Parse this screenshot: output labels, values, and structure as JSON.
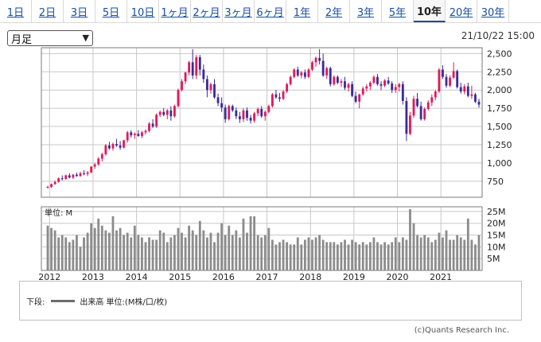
{
  "tabs": [
    "1日",
    "2日",
    "3日",
    "5日",
    "10日",
    "1ヶ月",
    "2ヶ月",
    "3ヶ月",
    "6ヶ月",
    "1年",
    "2年",
    "3年",
    "5年",
    "10年",
    "20年",
    "30年"
  ],
  "active_tab": "10年",
  "period_select": {
    "value": "月足"
  },
  "timestamp": "21/10/22 15:00",
  "volume_unit_label": "単位: M",
  "legend": {
    "lower_label": "下段:",
    "series_label": "出来高 単位:(M株/口/枚)"
  },
  "copyright": "(c)Quants Research Inc.",
  "colors": {
    "up": "#e0195a",
    "down": "#3a2a9a",
    "volume": "#8c8c8c",
    "grid": "#c8c8c8",
    "frame": "#7a7a7a"
  },
  "icons": {
    "select_arrow": "chevron-down-icon"
  },
  "chart_data": [
    {
      "type": "candlestick",
      "x_labels": [
        "2012",
        "2013",
        "2014",
        "2015",
        "2016",
        "2017",
        "2018",
        "2019",
        "2020",
        "2021"
      ],
      "y_ticks": [
        750,
        1000,
        1250,
        1500,
        1750,
        2000,
        2250,
        2500
      ],
      "y_tick_labels": [
        "750",
        "1,000",
        "1,250",
        "1,500",
        "1,750",
        "2,000",
        "2,250",
        "2,500"
      ],
      "ylim": [
        530,
        2580
      ],
      "grid": true,
      "ohlc": [
        [
          660,
          690,
          650,
          670
        ],
        [
          670,
          720,
          660,
          710
        ],
        [
          710,
          760,
          700,
          740
        ],
        [
          740,
          800,
          730,
          790
        ],
        [
          790,
          830,
          760,
          780
        ],
        [
          780,
          840,
          770,
          830
        ],
        [
          830,
          860,
          790,
          800
        ],
        [
          800,
          850,
          780,
          840
        ],
        [
          840,
          870,
          810,
          820
        ],
        [
          820,
          880,
          810,
          860
        ],
        [
          860,
          900,
          830,
          850
        ],
        [
          850,
          890,
          820,
          870
        ],
        [
          870,
          960,
          860,
          950
        ],
        [
          950,
          1000,
          920,
          980
        ],
        [
          980,
          1080,
          960,
          1060
        ],
        [
          1060,
          1140,
          1020,
          1120
        ],
        [
          1120,
          1260,
          1100,
          1240
        ],
        [
          1240,
          1290,
          1180,
          1200
        ],
        [
          1200,
          1280,
          1170,
          1260
        ],
        [
          1260,
          1330,
          1220,
          1240
        ],
        [
          1240,
          1300,
          1180,
          1210
        ],
        [
          1210,
          1320,
          1200,
          1310
        ],
        [
          1310,
          1440,
          1280,
          1420
        ],
        [
          1420,
          1450,
          1350,
          1380
        ],
        [
          1380,
          1420,
          1330,
          1400
        ],
        [
          1400,
          1450,
          1360,
          1370
        ],
        [
          1370,
          1440,
          1340,
          1420
        ],
        [
          1420,
          1460,
          1390,
          1440
        ],
        [
          1440,
          1560,
          1420,
          1540
        ],
        [
          1540,
          1600,
          1480,
          1500
        ],
        [
          1500,
          1680,
          1480,
          1660
        ],
        [
          1660,
          1720,
          1630,
          1700
        ],
        [
          1700,
          1750,
          1640,
          1660
        ],
        [
          1660,
          1740,
          1600,
          1720
        ],
        [
          1720,
          1780,
          1580,
          1640
        ],
        [
          1640,
          1800,
          1620,
          1780
        ],
        [
          1780,
          2020,
          1760,
          2000
        ],
        [
          2000,
          2150,
          1980,
          2120
        ],
        [
          2120,
          2250,
          2080,
          2240
        ],
        [
          2240,
          2400,
          2200,
          2380
        ],
        [
          2380,
          2560,
          2150,
          2200
        ],
        [
          2200,
          2480,
          2150,
          2450
        ],
        [
          2450,
          2480,
          2200,
          2280
        ],
        [
          2280,
          2350,
          2100,
          2150
        ],
        [
          2150,
          2200,
          1900,
          2000
        ],
        [
          2000,
          2100,
          1950,
          2080
        ],
        [
          2080,
          2150,
          1880,
          1900
        ],
        [
          1900,
          1950,
          1780,
          1820
        ],
        [
          1820,
          1900,
          1700,
          1760
        ],
        [
          1760,
          1800,
          1550,
          1600
        ],
        [
          1600,
          1800,
          1580,
          1780
        ],
        [
          1780,
          1800,
          1700,
          1720
        ],
        [
          1720,
          1760,
          1600,
          1640
        ],
        [
          1640,
          1700,
          1550,
          1600
        ],
        [
          1600,
          1750,
          1560,
          1720
        ],
        [
          1720,
          1760,
          1580,
          1620
        ],
        [
          1620,
          1660,
          1540,
          1580
        ],
        [
          1580,
          1700,
          1550,
          1680
        ],
        [
          1680,
          1760,
          1640,
          1740
        ],
        [
          1740,
          1780,
          1620,
          1640
        ],
        [
          1640,
          1720,
          1580,
          1700
        ],
        [
          1700,
          1800,
          1680,
          1780
        ],
        [
          1780,
          1960,
          1760,
          1940
        ],
        [
          1940,
          2000,
          1880,
          1900
        ],
        [
          1900,
          1960,
          1840,
          1880
        ],
        [
          1880,
          2000,
          1860,
          1980
        ],
        [
          1980,
          2100,
          1960,
          2080
        ],
        [
          2080,
          2200,
          2060,
          2180
        ],
        [
          2180,
          2300,
          2160,
          2280
        ],
        [
          2280,
          2320,
          2180,
          2200
        ],
        [
          2200,
          2260,
          2160,
          2240
        ],
        [
          2240,
          2280,
          2150,
          2180
        ],
        [
          2180,
          2300,
          2160,
          2280
        ],
        [
          2280,
          2400,
          2260,
          2380
        ],
        [
          2380,
          2460,
          2320,
          2440
        ],
        [
          2440,
          2560,
          2350,
          2400
        ],
        [
          2400,
          2500,
          2180,
          2200
        ],
        [
          2200,
          2320,
          2150,
          2300
        ],
        [
          2300,
          2320,
          2050,
          2080
        ],
        [
          2080,
          2200,
          2060,
          2180
        ],
        [
          2180,
          2200,
          2080,
          2100
        ],
        [
          2100,
          2150,
          2040,
          2120
        ],
        [
          2120,
          2180,
          2000,
          2030
        ],
        [
          2030,
          2100,
          1980,
          2080
        ],
        [
          2080,
          2120,
          1900,
          1920
        ],
        [
          1920,
          1980,
          1820,
          1840
        ],
        [
          1840,
          1950,
          1750,
          1940
        ],
        [
          1940,
          2050,
          1920,
          2020
        ],
        [
          2020,
          2080,
          1980,
          2050
        ],
        [
          2050,
          2120,
          2000,
          2100
        ],
        [
          2100,
          2200,
          2080,
          2180
        ],
        [
          2180,
          2220,
          2060,
          2080
        ],
        [
          2080,
          2120,
          2000,
          2060
        ],
        [
          2060,
          2150,
          2040,
          2130
        ],
        [
          2130,
          2180,
          2070,
          2090
        ],
        [
          2090,
          2120,
          1960,
          2000
        ],
        [
          2000,
          2080,
          1960,
          2040
        ],
        [
          2040,
          2100,
          1980,
          2080
        ],
        [
          2080,
          2120,
          1800,
          1850
        ],
        [
          1850,
          1900,
          1300,
          1400
        ],
        [
          1400,
          1700,
          1380,
          1650
        ],
        [
          1650,
          1920,
          1620,
          1880
        ],
        [
          1880,
          1960,
          1760,
          1780
        ],
        [
          1780,
          1840,
          1580,
          1600
        ],
        [
          1600,
          1760,
          1580,
          1740
        ],
        [
          1740,
          1860,
          1720,
          1830
        ],
        [
          1830,
          1940,
          1780,
          1900
        ],
        [
          1900,
          2000,
          1860,
          1980
        ],
        [
          1980,
          2300,
          1960,
          2280
        ],
        [
          2280,
          2340,
          2150,
          2180
        ],
        [
          2180,
          2220,
          2030,
          2060
        ],
        [
          2060,
          2200,
          2040,
          2170
        ],
        [
          2170,
          2380,
          2150,
          2260
        ],
        [
          2260,
          2280,
          2020,
          2040
        ],
        [
          2040,
          2100,
          1950,
          1980
        ],
        [
          1980,
          2080,
          1940,
          2050
        ],
        [
          2050,
          2100,
          1900,
          1920
        ],
        [
          1920,
          2060,
          1880,
          1940
        ],
        [
          1940,
          1960,
          1820,
          1840
        ],
        [
          1840,
          1880,
          1760,
          1800
        ]
      ]
    },
    {
      "type": "bar",
      "name": "出来高",
      "unit": "M",
      "y_ticks": [
        5,
        10,
        15,
        20,
        25
      ],
      "y_tick_labels": [
        "5M",
        "10M",
        "15M",
        "20M",
        "25M"
      ],
      "ylim": [
        0,
        27
      ],
      "values": [
        19,
        18,
        17,
        14,
        15,
        14,
        12,
        13,
        15,
        10,
        14,
        16,
        20,
        18,
        22,
        19,
        17,
        16,
        23,
        17,
        18,
        15,
        16,
        14,
        19,
        15,
        14,
        12,
        14,
        13,
        13,
        17,
        16,
        12,
        14,
        15,
        18,
        16,
        14,
        19,
        17,
        15,
        21,
        17,
        14,
        16,
        12,
        16,
        20,
        15,
        19,
        15,
        17,
        14,
        22,
        16,
        23,
        23,
        15,
        14,
        15,
        18,
        13,
        11,
        12,
        13,
        12,
        11,
        11,
        14,
        11,
        13,
        14,
        13,
        14,
        15,
        13,
        12,
        12,
        12,
        11,
        12,
        13,
        11,
        13,
        12,
        11,
        12,
        11,
        12,
        14,
        12,
        11,
        12,
        11,
        12,
        14,
        12,
        14,
        13,
        26,
        20,
        15,
        14,
        15,
        14,
        12,
        13,
        16,
        14,
        17,
        13,
        13,
        15,
        14,
        13,
        22,
        13,
        11,
        15
      ]
    }
  ]
}
